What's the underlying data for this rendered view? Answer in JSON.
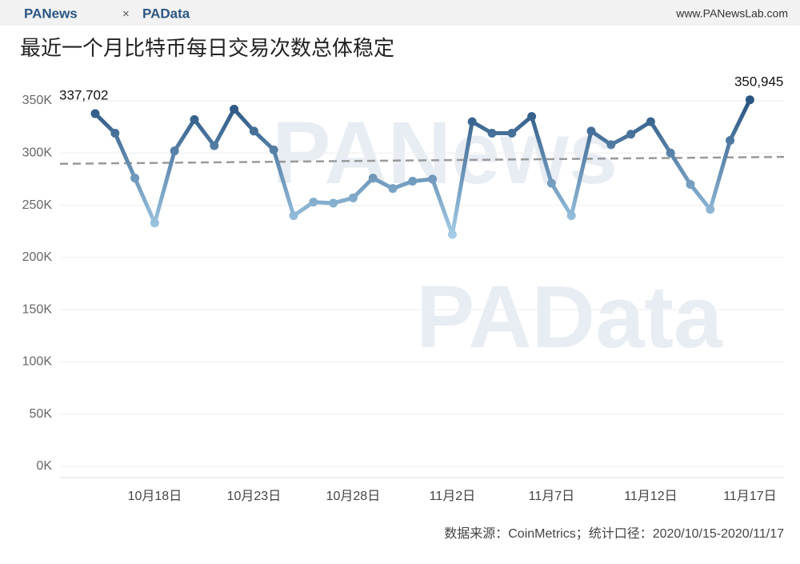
{
  "header": {
    "brand_left": "PANews",
    "separator": "×",
    "brand_right": "PAData",
    "website": "www.PANewsLab.com"
  },
  "chart_data": {
    "type": "line",
    "title": "最近一个月比特币每日交易次数总体稳定",
    "source": "数据来源：CoinMetrics；统计口径：2020/10/15-2020/11/17",
    "watermarks": [
      "PANews",
      "PAData"
    ],
    "categories": [
      null,
      null,
      null,
      "10月18日",
      null,
      null,
      null,
      null,
      "10月23日",
      null,
      null,
      null,
      null,
      "10月28日",
      null,
      null,
      null,
      null,
      "11月2日",
      null,
      null,
      null,
      null,
      "11月7日",
      null,
      null,
      null,
      null,
      "11月12日",
      null,
      null,
      null,
      null,
      "11月17日"
    ],
    "values": [
      337702,
      319000,
      276000,
      233000,
      302000,
      332000,
      307000,
      342000,
      321000,
      303000,
      240000,
      253000,
      252000,
      257000,
      276000,
      266000,
      273000,
      275000,
      222000,
      330000,
      319000,
      319000,
      335000,
      271000,
      240000,
      321000,
      308000,
      318000,
      330000,
      300000,
      270000,
      246000,
      312000,
      350945
    ],
    "value_labels": [
      "337,702",
      null,
      null,
      null,
      null,
      null,
      null,
      null,
      null,
      null,
      null,
      null,
      null,
      null,
      null,
      null,
      null,
      null,
      null,
      null,
      null,
      null,
      null,
      null,
      null,
      null,
      null,
      null,
      null,
      null,
      null,
      null,
      null,
      "350,945"
    ],
    "color_scale": [
      "#a8d0ea",
      "#2b5683"
    ],
    "trendline": {
      "values": [
        290000,
        296000
      ],
      "color": "#999999"
    },
    "ylim": [
      0,
      350000
    ],
    "yticks": [
      {
        "value": 0,
        "label": "0K"
      },
      {
        "value": 50000,
        "label": "50K"
      },
      {
        "value": 100000,
        "label": "100K"
      },
      {
        "value": 150000,
        "label": "150K"
      },
      {
        "value": 200000,
        "label": "200K"
      },
      {
        "value": 250000,
        "label": "250K"
      },
      {
        "value": 300000,
        "label": "300K"
      },
      {
        "value": 350000,
        "label": "350K"
      }
    ],
    "grid": true
  }
}
